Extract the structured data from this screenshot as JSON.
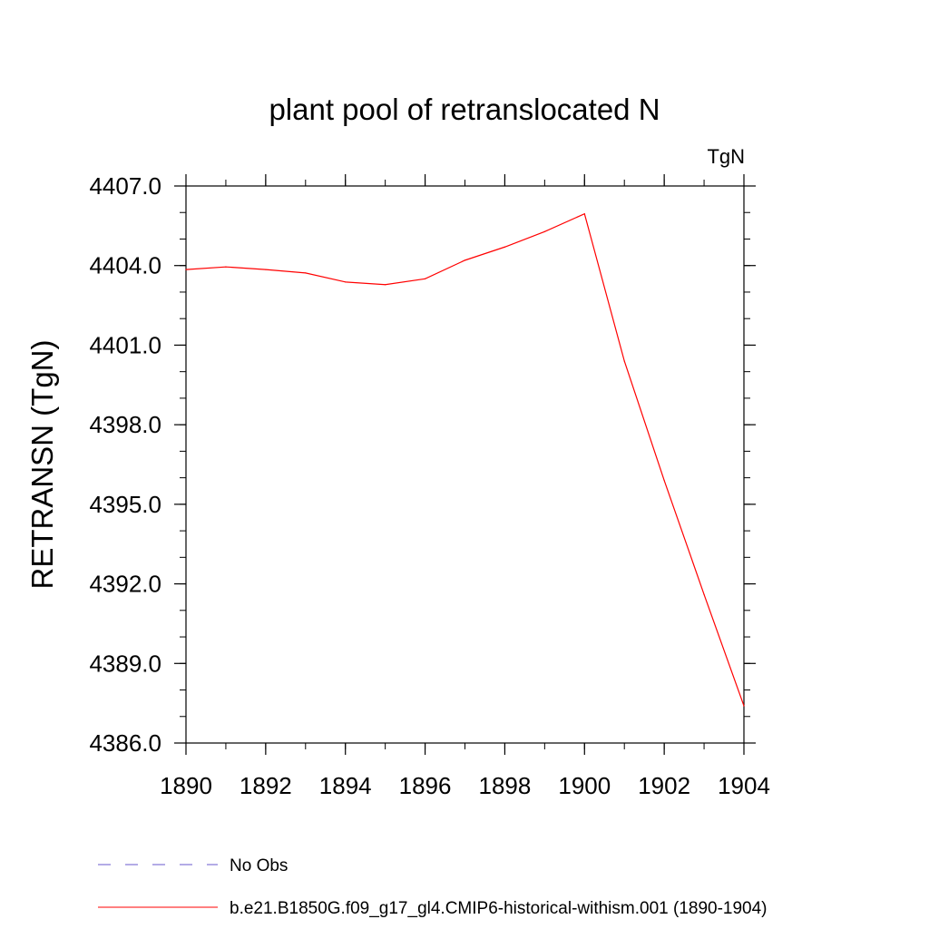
{
  "chart_data": {
    "type": "line",
    "title": "plant pool of retranslocated N",
    "units": "TgN",
    "ylabel": "RETRANSN  (TgN)",
    "xlabel": "",
    "xlim": [
      1890,
      1904
    ],
    "ylim": [
      4386.0,
      4407.0
    ],
    "x_ticks": [
      "1890",
      "1892",
      "1894",
      "1896",
      "1898",
      "1900",
      "1902",
      "1904"
    ],
    "y_ticks": [
      "4386.0",
      "4389.0",
      "4392.0",
      "4395.0",
      "4398.0",
      "4401.0",
      "4404.0",
      "4407.0"
    ],
    "grid": false,
    "legend_position": "bottom",
    "series": [
      {
        "name": "No Obs",
        "color": "#6a5acd",
        "dash": "dashed",
        "x": [],
        "y": []
      },
      {
        "name": "b.e21.B1850G.f09_g17_gl4.CMIP6-historical-withism.001 (1890-1904)",
        "color": "#ff0000",
        "dash": "solid",
        "x": [
          1890,
          1891,
          1892,
          1893,
          1894,
          1895,
          1896,
          1897,
          1898,
          1899,
          1900,
          1901,
          1902,
          1903,
          1904
        ],
        "y": [
          4403.85,
          4403.95,
          4403.85,
          4403.72,
          4403.38,
          4403.28,
          4403.5,
          4404.2,
          4404.7,
          4405.28,
          4405.95,
          4400.4,
          4395.9,
          4391.6,
          4387.4
        ]
      }
    ]
  }
}
